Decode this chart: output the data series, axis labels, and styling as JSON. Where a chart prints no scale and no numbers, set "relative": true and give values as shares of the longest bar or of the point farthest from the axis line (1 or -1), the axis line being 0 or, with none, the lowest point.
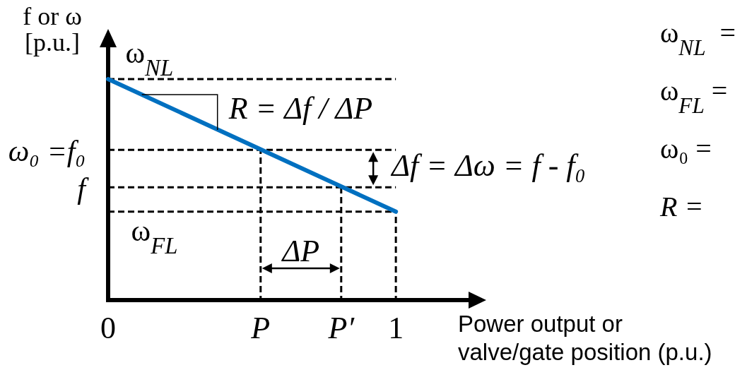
{
  "chart_data": {
    "type": "line",
    "relative": true,
    "ylabel": "f or ω\n[p.u.]",
    "xlabel": "Power output or\nvalve/gate position (p.u.)",
    "x": [
      0,
      1
    ],
    "values": [
      1,
      0.4
    ],
    "color": "#0070c0",
    "xlim": [
      0,
      1.26
    ],
    "xticks": [
      0,
      {
        "value": 0.53,
        "label": "P"
      },
      {
        "value": 0.81,
        "label": "P′"
      },
      1
    ],
    "tick_labels": "x",
    "ref_lines": [
      {
        "axis": "x",
        "value": 0,
        "line_style": "solid",
        "color": "#000000"
      },
      {
        "axis": "y",
        "value": 1,
        "line_style": "dashed"
      },
      {
        "axis": "y",
        "value": 0.68,
        "label": "ω₀ =f₀",
        "line_style": "dashed"
      },
      {
        "axis": "y",
        "value": 0.51,
        "label": "f",
        "line_style": "dashed"
      },
      {
        "axis": "y",
        "value": 0.4,
        "line_style": "dashed"
      },
      {
        "axis": "x",
        "value": 0.53,
        "line_style": "dashed"
      },
      {
        "axis": "x",
        "value": 0.81,
        "line_style": "dashed"
      },
      {
        "axis": "x",
        "value": 1,
        "line_style": "dashed"
      }
    ],
    "annotations": [
      {
        "text": "ω$_{NL}$",
        "x": 0.06,
        "y": 1
      },
      {
        "text": "ω$_{FL}$",
        "x": 0.08,
        "y": 0.4
      },
      {
        "text": "R = Δf / ΔP",
        "x": 0.38,
        "y": 0.77
      },
      "Δf = Δω = f - f₀",
      "ΔP",
      "ω$_{NL}$  =",
      "ω$_{FL}$ =",
      "ω₀ =",
      "R ="
    ]
  }
}
